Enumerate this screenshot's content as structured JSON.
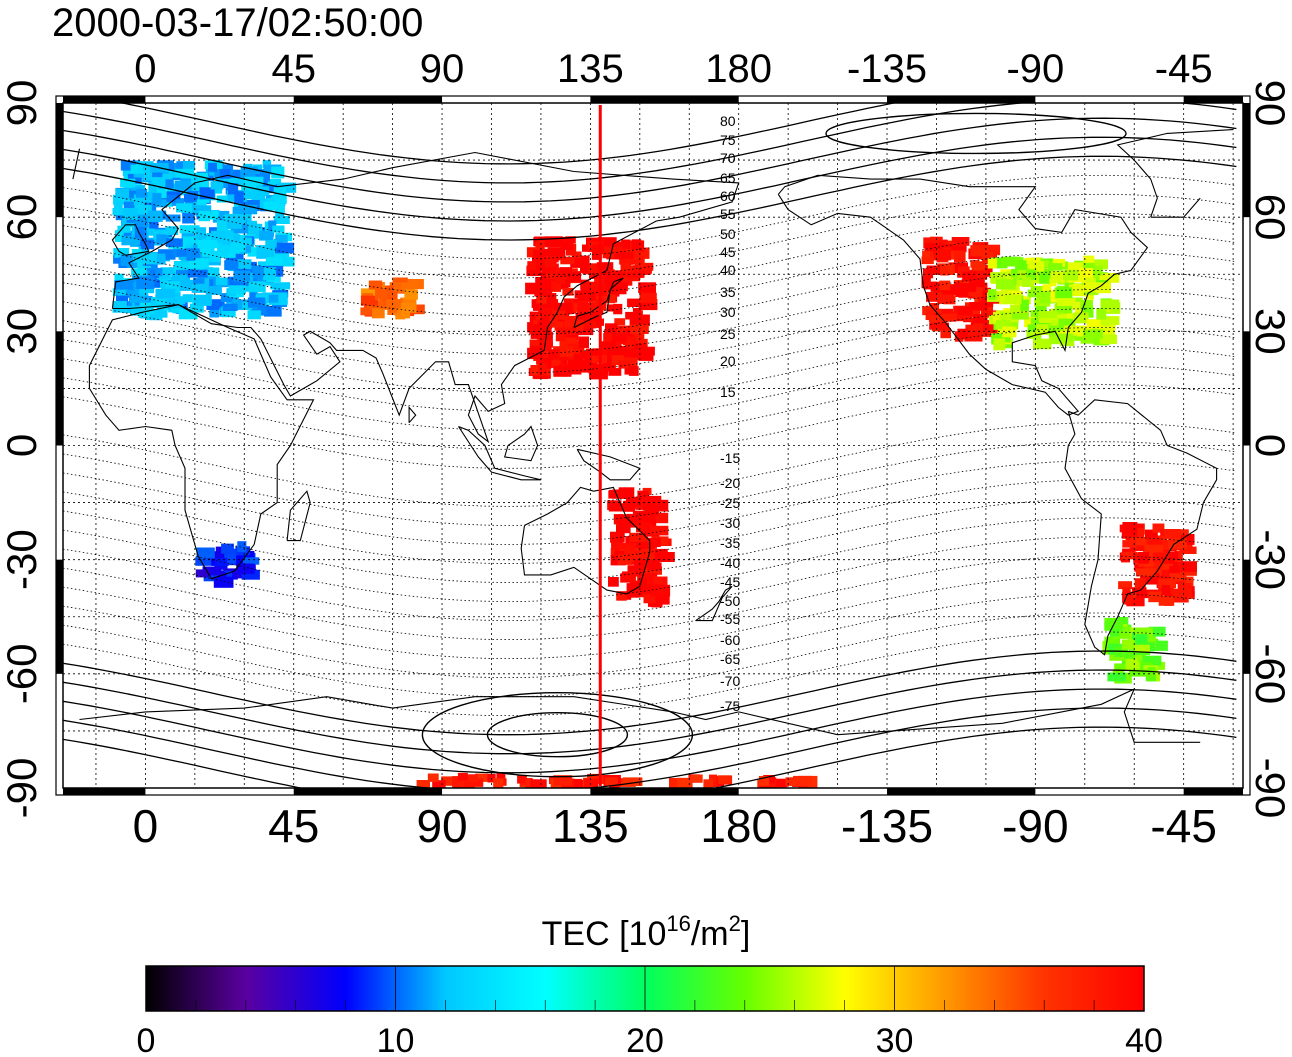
{
  "timestamp": "2000-03-17/02:50:00",
  "lon_ticks": [
    {
      "lon": 0,
      "label": "0"
    },
    {
      "lon": 45,
      "label": "45"
    },
    {
      "lon": 90,
      "label": "90"
    },
    {
      "lon": 135,
      "label": "135"
    },
    {
      "lon": 180,
      "label": "180"
    },
    {
      "lon": 225,
      "label": "-135"
    },
    {
      "lon": 270,
      "label": "-90"
    },
    {
      "lon": 315,
      "label": "-45"
    }
  ],
  "lat_ticks": [
    {
      "lat": 90,
      "label": "90"
    },
    {
      "lat": 60,
      "label": "60"
    },
    {
      "lat": 30,
      "label": "30"
    },
    {
      "lat": 0,
      "label": "0"
    },
    {
      "lat": -30,
      "label": "-30"
    },
    {
      "lat": -60,
      "label": "-60"
    },
    {
      "lat": -90,
      "label": "-90"
    }
  ],
  "lon_range": [
    -25,
    333
  ],
  "lat_range": [
    -90,
    90
  ],
  "magnetic_latitude_labels": [
    "80",
    "75",
    "70",
    "65",
    "60",
    "55",
    "50",
    "45",
    "40",
    "35",
    "30",
    "25",
    "20",
    "15",
    "-15",
    "-20",
    "-25",
    "-30",
    "-35",
    "-40",
    "-45",
    "-50",
    "-55",
    "-60",
    "-65",
    "-70",
    "-75"
  ],
  "subsolar_meridian_lon": 138,
  "subsolar_line_color": "#ff0000",
  "colorbar": {
    "title_prefix": "TEC  [10",
    "title_exp1": "16",
    "title_mid": "/m",
    "title_exp2": "2",
    "title_suffix": "]",
    "min": 0,
    "max": 40,
    "tick_labels": [
      {
        "value": 0,
        "label": "0"
      },
      {
        "value": 10,
        "label": "10"
      },
      {
        "value": 20,
        "label": "20"
      },
      {
        "value": 30,
        "label": "30"
      },
      {
        "value": 40,
        "label": "40"
      }
    ],
    "colors": [
      "#000000",
      "#5a00a0",
      "#0000ff",
      "#00c8ff",
      "#00ffff",
      "#00ff60",
      "#66ff00",
      "#ffff00",
      "#ff9900",
      "#ff3300",
      "#ff0000"
    ]
  },
  "tec_regions": [
    {
      "name": "europe",
      "lon": [
        -10,
        40
      ],
      "lat": [
        35,
        75
      ],
      "tec": 12
    },
    {
      "name": "north-america-west",
      "lon": [
        235,
        255
      ],
      "lat": [
        30,
        55
      ],
      "tec": 39
    },
    {
      "name": "north-america-east",
      "lon": [
        255,
        290
      ],
      "lat": [
        28,
        50
      ],
      "tec": 26
    },
    {
      "name": "east-asia",
      "lon": [
        115,
        150
      ],
      "lat": [
        20,
        55
      ],
      "tec": 40
    },
    {
      "name": "australia-east",
      "lon": [
        140,
        155
      ],
      "lat": [
        -40,
        -10
      ],
      "tec": 40
    },
    {
      "name": "south-america",
      "lon": [
        295,
        315
      ],
      "lat": [
        -40,
        -20
      ],
      "tec": 39
    },
    {
      "name": "patagonia",
      "lon": [
        290,
        305
      ],
      "lat": [
        -60,
        -45
      ],
      "tec": 24
    },
    {
      "name": "south-africa",
      "lon": [
        15,
        30
      ],
      "lat": [
        -35,
        -25
      ],
      "tec": 8
    },
    {
      "name": "central-asia",
      "lon": [
        65,
        80
      ],
      "lat": [
        35,
        45
      ],
      "tec": 34
    },
    {
      "name": "antarctic-arc",
      "lon": [
        80,
        200
      ],
      "lat": [
        -88,
        -86
      ],
      "tec": 38
    }
  ]
}
